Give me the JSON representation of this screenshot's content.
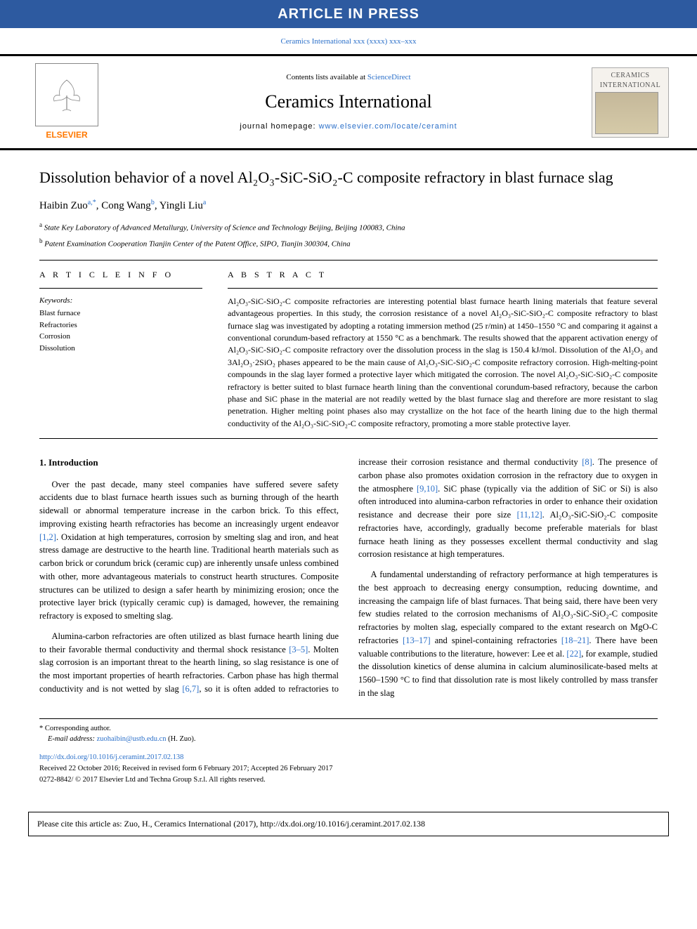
{
  "colors": {
    "banner_bg": "#2d5aa0",
    "link": "#2a6fc9",
    "elsevier_orange": "#ff7800",
    "text": "#000000",
    "page_bg": "#ffffff"
  },
  "banner": {
    "text": "ARTICLE IN PRESS"
  },
  "citation_header": "Ceramics International xxx (xxxx) xxx–xxx",
  "header": {
    "contents_prefix": "Contents lists available at ",
    "contents_link": "ScienceDirect",
    "journal_name": "Ceramics International",
    "homepage_prefix": "journal homepage: ",
    "homepage_url": "www.elsevier.com/locate/ceramint",
    "elsevier_name": "ELSEVIER",
    "cover_title": "CERAMICS INTERNATIONAL"
  },
  "title": "Dissolution behavior of a novel Al₂O₃-SiC-SiO₂-C composite refractory in blast furnace slag",
  "authors_html": "Haibin Zuo<sup>a,*</sup>, Cong Wang<sup>b</sup>, Yingli Liu<sup>a</sup>",
  "affiliations": [
    {
      "sup": "a",
      "text": "State Key Laboratory of Advanced Metallurgy, University of Science and Technology Beijing, Beijing 100083, China"
    },
    {
      "sup": "b",
      "text": "Patent Examination Cooperation Tianjin Center of the Patent Office, SIPO, Tianjin 300304, China"
    }
  ],
  "article_info": {
    "heading": "A R T I C L E   I N F O",
    "keywords_label": "Keywords:",
    "keywords": [
      "Blast furnace",
      "Refractories",
      "Corrosion",
      "Dissolution"
    ]
  },
  "abstract": {
    "heading": "A B S T R A C T",
    "text": "Al₂O₃-SiC-SiO₂-C composite refractories are interesting potential blast furnace hearth lining materials that feature several advantageous properties. In this study, the corrosion resistance of a novel Al₂O₃-SiC-SiO₂-C composite refractory to blast furnace slag was investigated by adopting a rotating immersion method (25 r/min) at 1450–1550 °C and comparing it against a conventional corundum-based refractory at 1550 °C as a benchmark. The results showed that the apparent activation energy of Al₂O₃-SiC-SiO₂-C composite refractory over the dissolution process in the slag is 150.4 kJ/mol. Dissolution of the Al₂O₃ and 3Al₂O₃·2SiO₂ phases appeared to be the main cause of Al₂O₃-SiC-SiO₂-C composite refractory corrosion. High-melting-point compounds in the slag layer formed a protective layer which mitigated the corrosion. The novel Al₂O₃-SiC-SiO₂-C composite refractory is better suited to blast furnace hearth lining than the conventional corundum-based refractory, because the carbon phase and SiC phase in the material are not readily wetted by the blast furnace slag and therefore are more resistant to slag penetration. Higher melting point phases also may crystallize on the hot face of the hearth lining due to the high thermal conductivity of the Al₂O₃-SiC-SiO₂-C composite refractory, promoting a more stable protective layer."
  },
  "section1": {
    "heading": "1. Introduction",
    "p1": "Over the past decade, many steel companies have suffered severe safety accidents due to blast furnace hearth issues such as burning through of the hearth sidewall or abnormal temperature increase in the carbon brick. To this effect, improving existing hearth refractories has become an increasingly urgent endeavor [1,2]. Oxidation at high temperatures, corrosion by smelting slag and iron, and heat stress damage are destructive to the hearth line. Traditional hearth materials such as carbon brick or corundum brick (ceramic cup) are inherently unsafe unless combined with other, more advantageous materials to construct hearth structures. Composite structures can be utilized to design a safer hearth by minimizing erosion; once the protective layer brick (typically ceramic cup) is damaged, however, the remaining refractory is exposed to smelting slag.",
    "p2": "Alumina-carbon refractories are often utilized as blast furnace hearth lining due to their favorable thermal conductivity and thermal shock resistance [3–5]. Molten slag corrosion is an important threat to the hearth lining, so slag resistance is one of the most important properties of hearth refractories. Carbon phase has high thermal conductivity and is not wetted by slag [6,7], so it is often added to refractories to increase their corrosion resistance and thermal conductivity [8]. The presence of carbon phase also promotes oxidation corrosion in the refractory due to oxygen in the atmosphere [9,10]. SiC phase (typically via the addition of SiC or Si) is also often introduced into alumina-carbon refractories in order to enhance their oxidation resistance and decrease their pore size [11,12]. Al₂O₃-SiC-SiO₂-C composite refractories have, accordingly, gradually become preferable materials for blast furnace heath lining as they possesses excellent thermal conductivity and slag corrosion resistance at high temperatures.",
    "p3": "A fundamental understanding of refractory performance at high temperatures is the best approach to decreasing energy consumption, reducing downtime, and increasing the campaign life of blast furnaces. That being said, there have been very few studies related to the corrosion mechanisms of Al₂O₃-SiC-SiO₂-C composite refractories by molten slag, especially compared to the extant research on MgO-C refractories [13–17] and spinel-containing refractories [18–21]. There have been valuable contributions to the literature, however: Lee et al. [22], for example, studied the dissolution kinetics of dense alumina in calcium aluminosilicate-based melts at 1560–1590 °C to find that dissolution rate is most likely controlled by mass transfer in the slag",
    "ref_1_2": "[1,2]",
    "ref_3_5": "[3–5]",
    "ref_6_7": "[6,7]",
    "ref_8": "[8]",
    "ref_9_10": "[9,10]",
    "ref_11_12": "[11,12]",
    "ref_13_17": "[13–17]",
    "ref_18_21": "[18–21]",
    "ref_22": "[22]"
  },
  "footnotes": {
    "corresponding": "* Corresponding author.",
    "email_label": "E-mail address: ",
    "email": "zuohaibin@ustb.edu.cn",
    "email_author": " (H. Zuo).",
    "doi": "http://dx.doi.org/10.1016/j.ceramint.2017.02.138",
    "received": "Received 22 October 2016; Received in revised form 6 February 2017; Accepted 26 February 2017",
    "copyright": "0272-8842/ © 2017 Elsevier Ltd and Techna Group S.r.l. All rights reserved."
  },
  "cite_box": "Please cite this article as: Zuo, H., Ceramics International (2017), http://dx.doi.org/10.1016/j.ceramint.2017.02.138"
}
